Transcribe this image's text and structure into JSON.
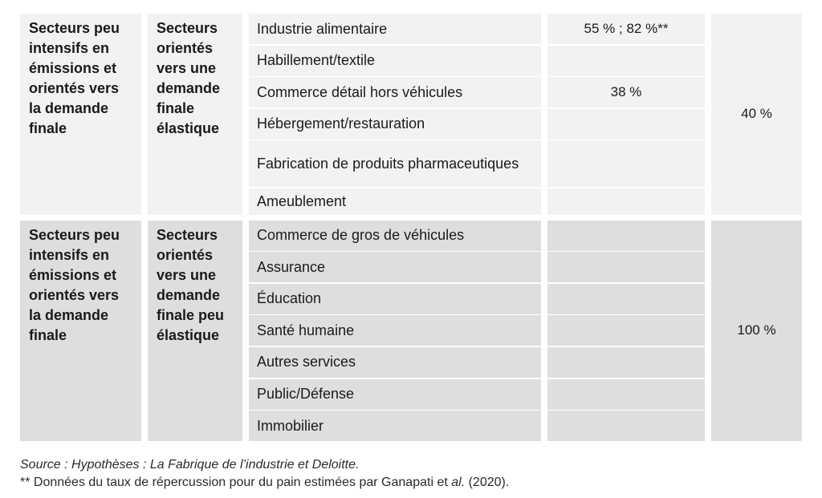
{
  "group1": {
    "category": "Secteurs peu intensifs en émissions et orientés vers la demande finale",
    "subcategory": "Secteurs orientés vers une demande finale élastique",
    "final_rate": "40 %",
    "rows": [
      {
        "sector": "Industrie alimentaire",
        "rate": "55 % ; 82 %**"
      },
      {
        "sector": "Habillement/textile",
        "rate": ""
      },
      {
        "sector": "Commerce détail hors véhicules",
        "rate": "38 %"
      },
      {
        "sector": "Hébergement/restauration",
        "rate": ""
      },
      {
        "sector": "Fabrication de produits pharmaceutiques",
        "rate": ""
      },
      {
        "sector": "Ameublement",
        "rate": ""
      }
    ]
  },
  "group2": {
    "category": "Secteurs peu intensifs en émissions et orientés vers la demande finale",
    "subcategory": "Secteurs orientés vers une demande finale peu élastique",
    "final_rate": "100 %",
    "rows": [
      {
        "sector": "Commerce de gros de véhicules",
        "rate": ""
      },
      {
        "sector": "Assurance",
        "rate": ""
      },
      {
        "sector": "Éducation",
        "rate": ""
      },
      {
        "sector": "Santé humaine",
        "rate": ""
      },
      {
        "sector": "Autres services",
        "rate": ""
      },
      {
        "sector": "Public/Défense",
        "rate": ""
      },
      {
        "sector": "Immobilier",
        "rate": ""
      }
    ]
  },
  "notes": {
    "source": "Source : Hypothèses : La Fabrique de l’industrie et Deloitte.",
    "footnote_prefix": "** Données du taux de répercussion pour du pain estimées par Ganapati et ",
    "footnote_al": "al.",
    "footnote_suffix": " (2020)."
  }
}
